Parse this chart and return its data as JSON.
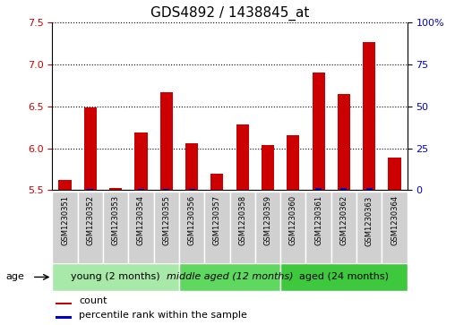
{
  "title": "GDS4892 / 1438845_at",
  "samples": [
    "GSM1230351",
    "GSM1230352",
    "GSM1230353",
    "GSM1230354",
    "GSM1230355",
    "GSM1230356",
    "GSM1230357",
    "GSM1230358",
    "GSM1230359",
    "GSM1230360",
    "GSM1230361",
    "GSM1230362",
    "GSM1230363",
    "GSM1230364"
  ],
  "count_values": [
    5.62,
    6.49,
    5.52,
    6.19,
    6.67,
    6.06,
    5.7,
    6.28,
    6.04,
    6.16,
    6.9,
    6.65,
    7.27,
    5.89
  ],
  "percentile_values": [
    3,
    8,
    2,
    6,
    7,
    4,
    3,
    2,
    3,
    3,
    9,
    9,
    10,
    2
  ],
  "ymin": 5.5,
  "ymax": 7.5,
  "yticks": [
    5.5,
    6.0,
    6.5,
    7.0,
    7.5
  ],
  "y2min": 0,
  "y2max": 100,
  "y2ticks": [
    0,
    25,
    50,
    75,
    100
  ],
  "groups": [
    {
      "label": "young (2 months)",
      "start": 0,
      "end": 5,
      "color": "#90EE90"
    },
    {
      "label": "middle aged (12 months)",
      "start": 5,
      "end": 9,
      "color": "#4CC94C"
    },
    {
      "label": "aged (24 months)",
      "start": 9,
      "end": 14,
      "color": "#32CD32"
    }
  ],
  "bar_color_red": "#CC0000",
  "bar_color_blue": "#0000CC",
  "bar_width": 0.5,
  "percentile_bar_width": 0.25,
  "legend_count_label": "count",
  "legend_pct_label": "percentile rank within the sample",
  "age_label": "age",
  "title_fontsize": 11,
  "tick_fontsize": 8,
  "sample_fontsize": 6,
  "group_fontsize": 8,
  "legend_fontsize": 8
}
